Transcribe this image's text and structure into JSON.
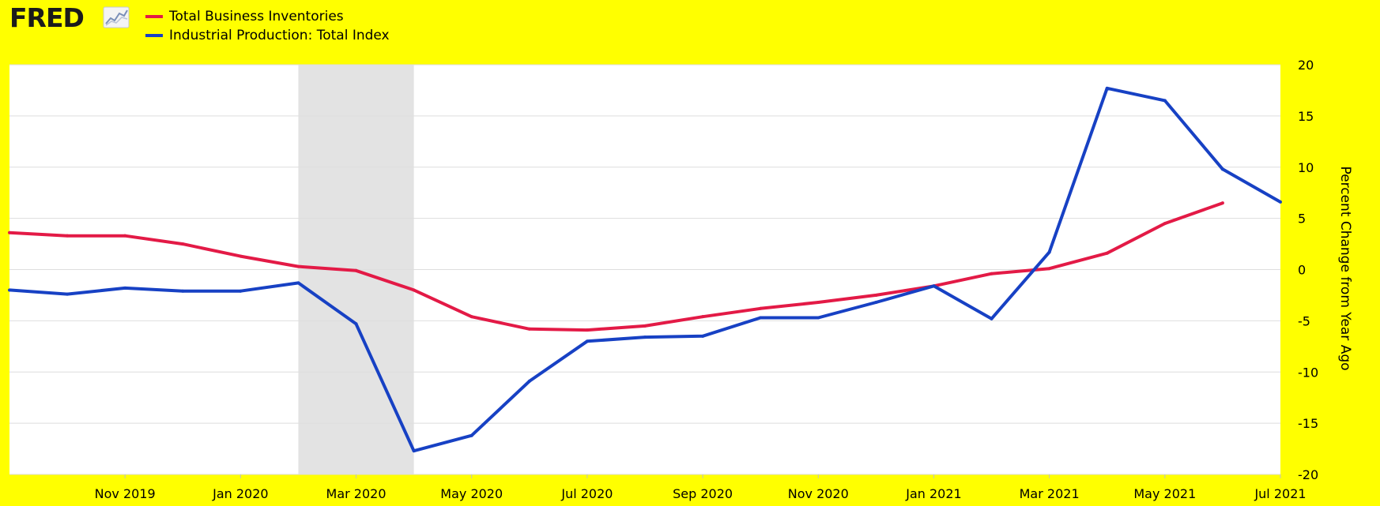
{
  "logo": {
    "text": "FRED",
    "icon": "chart-line-icon"
  },
  "chart_data": {
    "type": "line",
    "title": "",
    "xlabel": "",
    "ylabel": "Percent Change from Year Ago",
    "ylim": [
      -20,
      20
    ],
    "yticks": [
      20,
      15,
      10,
      5,
      0,
      -5,
      -10,
      -15,
      -20
    ],
    "xlim": [
      "2019-09",
      "2021-07"
    ],
    "xticks": [
      "Nov 2019",
      "Jan 2020",
      "Mar 2020",
      "May 2020",
      "Jul 2020",
      "Sep 2020",
      "Nov 2020",
      "Jan 2021",
      "Mar 2021",
      "May 2021",
      "Jul 2021"
    ],
    "grid": true,
    "legend": "top-left",
    "recession_shading": {
      "start": "2020-02",
      "end": "2020-04",
      "color": "#e3e3e3"
    },
    "series": [
      {
        "name": "Total Business Inventories",
        "color": "#e31a46",
        "points": [
          [
            "2019-09",
            3.6
          ],
          [
            "2019-10",
            3.3
          ],
          [
            "2019-11",
            3.3
          ],
          [
            "2019-12",
            2.5
          ],
          [
            "2020-01",
            1.3
          ],
          [
            "2020-02",
            0.3
          ],
          [
            "2020-03",
            -0.1
          ],
          [
            "2020-04",
            -2.0
          ],
          [
            "2020-05",
            -4.6
          ],
          [
            "2020-06",
            -5.8
          ],
          [
            "2020-07",
            -5.9
          ],
          [
            "2020-08",
            -5.5
          ],
          [
            "2020-09",
            -4.6
          ],
          [
            "2020-10",
            -3.8
          ],
          [
            "2020-11",
            -3.2
          ],
          [
            "2020-12",
            -2.5
          ],
          [
            "2021-01",
            -1.6
          ],
          [
            "2021-02",
            -0.4
          ],
          [
            "2021-03",
            0.1
          ],
          [
            "2021-04",
            1.6
          ],
          [
            "2021-05",
            4.5
          ],
          [
            "2021-06",
            6.5
          ]
        ]
      },
      {
        "name": "Industrial Production: Total Index",
        "color": "#1741c4",
        "points": [
          [
            "2019-09",
            -2.0
          ],
          [
            "2019-10",
            -2.4
          ],
          [
            "2019-11",
            -1.8
          ],
          [
            "2019-12",
            -2.1
          ],
          [
            "2020-01",
            -2.1
          ],
          [
            "2020-02",
            -1.3
          ],
          [
            "2020-03",
            -5.3
          ],
          [
            "2020-04",
            -17.7
          ],
          [
            "2020-05",
            -16.2
          ],
          [
            "2020-06",
            -10.9
          ],
          [
            "2020-07",
            -7.0
          ],
          [
            "2020-08",
            -6.6
          ],
          [
            "2020-09",
            -6.5
          ],
          [
            "2020-10",
            -4.7
          ],
          [
            "2020-11",
            -4.7
          ],
          [
            "2020-12",
            -3.2
          ],
          [
            "2021-01",
            -1.6
          ],
          [
            "2021-02",
            -4.8
          ],
          [
            "2021-03",
            1.7
          ],
          [
            "2021-04",
            17.7
          ],
          [
            "2021-05",
            16.5
          ],
          [
            "2021-06",
            9.8
          ],
          [
            "2021-07",
            6.6
          ]
        ]
      }
    ]
  }
}
